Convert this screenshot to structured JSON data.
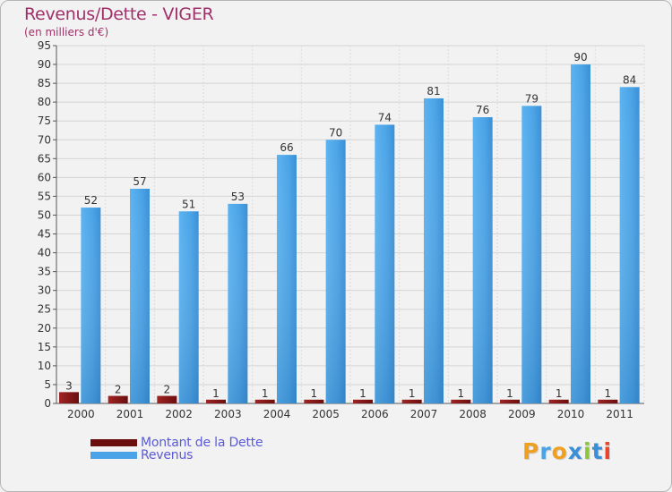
{
  "chart_data": {
    "type": "bar",
    "title": "Revenus/Dette - VIGER",
    "subtitle": "(en milliers d'€)",
    "categories": [
      "2000",
      "2001",
      "2002",
      "2003",
      "2004",
      "2005",
      "2006",
      "2007",
      "2008",
      "2009",
      "2010",
      "2011"
    ],
    "series": [
      {
        "name": "Montant de la Dette",
        "color": "#8b1a1a",
        "values": [
          3,
          2,
          2,
          1,
          1,
          1,
          1,
          1,
          1,
          1,
          1,
          1
        ]
      },
      {
        "name": "Revenus",
        "color": "#4aa3e6",
        "values": [
          52,
          57,
          51,
          53,
          66,
          70,
          74,
          81,
          76,
          79,
          90,
          84
        ]
      }
    ],
    "ylim": [
      0,
      95
    ],
    "yticks": [
      0,
      5,
      10,
      15,
      20,
      25,
      30,
      35,
      40,
      45,
      50,
      55,
      60,
      65,
      70,
      75,
      80,
      85,
      90,
      95
    ],
    "grid": true,
    "legend_position": "bottom-left"
  },
  "legend": {
    "items": [
      {
        "label": "Montant de la Dette",
        "color": "#6b0e0e"
      },
      {
        "label": "Revenus",
        "color": "#4aa3e6"
      }
    ]
  },
  "logo": {
    "letters": [
      "P",
      "r",
      "o",
      "x",
      "i",
      "t",
      "i"
    ],
    "colors": [
      "#f0a020",
      "#4aa3e6",
      "#f0a020",
      "#3a8fd6",
      "#8cc63f",
      "#3a8fd6",
      "#e8452c"
    ]
  }
}
